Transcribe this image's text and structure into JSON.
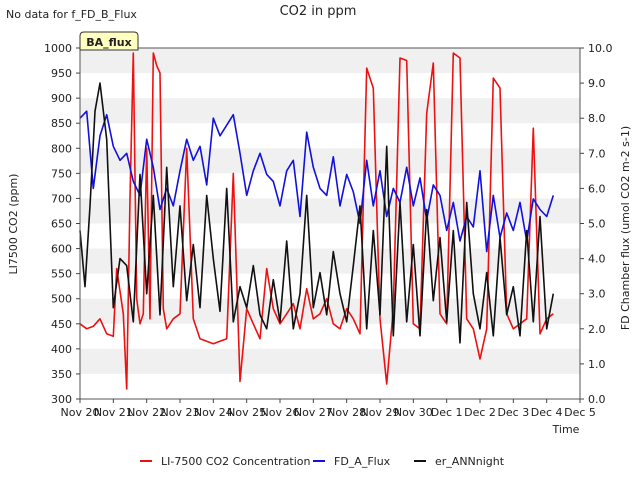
{
  "chart_data": {
    "type": "line",
    "title": "CO2 in ppm",
    "top_left_note": "No data for f_FD_B_Flux",
    "badge": "BA_flux",
    "xlabel": "Time",
    "ylabel_left": "LI7500 CO2 (ppm)",
    "ylabel_right": "FD Chamber flux (umol CO2 m-2 s-1)",
    "ylim_left": [
      300,
      1000
    ],
    "ylim_right": [
      0.0,
      10.0
    ],
    "yticks_left": [
      "300",
      "350",
      "400",
      "450",
      "500",
      "550",
      "600",
      "650",
      "700",
      "750",
      "800",
      "850",
      "900",
      "950",
      "1000"
    ],
    "yticks_right": [
      "0.0",
      "1.0",
      "2.0",
      "3.0",
      "4.0",
      "5.0",
      "6.0",
      "7.0",
      "8.0",
      "9.0",
      "10.0"
    ],
    "xticks": [
      "Nov 20",
      "Nov 21",
      "Nov 22",
      "Nov 23",
      "Nov 24",
      "Nov 25",
      "Nov 26",
      "Nov 27",
      "Nov 28",
      "Nov 29",
      "Nov 30",
      "Dec 1",
      "Dec 2",
      "Dec 3",
      "Dec 4",
      "Dec 5"
    ],
    "x_range_days": [
      0,
      15
    ],
    "grid": "horizontal bands",
    "legend_position": "bottom",
    "series": [
      {
        "name": "LI-7500 CO2 Concentration",
        "axis": "left",
        "color": "#ee1111",
        "x": [
          0.0,
          0.2,
          0.4,
          0.6,
          0.8,
          1.0,
          1.1,
          1.3,
          1.4,
          1.5,
          1.6,
          1.7,
          1.8,
          1.9,
          2.0,
          2.1,
          2.2,
          2.3,
          2.4,
          2.5,
          2.6,
          2.8,
          3.0,
          3.2,
          3.4,
          3.6,
          3.8,
          4.0,
          4.2,
          4.4,
          4.6,
          4.8,
          5.0,
          5.2,
          5.4,
          5.6,
          5.8,
          6.0,
          6.2,
          6.4,
          6.6,
          6.8,
          7.0,
          7.2,
          7.4,
          7.6,
          7.8,
          8.0,
          8.2,
          8.4,
          8.6,
          8.8,
          9.0,
          9.2,
          9.4,
          9.6,
          9.8,
          10.0,
          10.2,
          10.4,
          10.6,
          10.8,
          11.0,
          11.2,
          11.4,
          11.6,
          11.8,
          12.0,
          12.2,
          12.4,
          12.6,
          12.8,
          13.0,
          13.2,
          13.4,
          13.6,
          13.8,
          14.0,
          14.2
        ],
        "y": [
          450,
          440,
          445,
          460,
          430,
          425,
          560,
          470,
          320,
          700,
          990,
          500,
          450,
          470,
          800,
          460,
          990,
          965,
          950,
          480,
          440,
          460,
          470,
          800,
          460,
          420,
          415,
          410,
          415,
          420,
          750,
          335,
          480,
          450,
          420,
          560,
          480,
          450,
          470,
          490,
          440,
          520,
          460,
          470,
          500,
          450,
          440,
          480,
          460,
          430,
          960,
          920,
          460,
          330,
          480,
          980,
          975,
          450,
          440,
          870,
          970,
          470,
          450,
          990,
          980,
          460,
          440,
          380,
          440,
          940,
          920,
          470,
          440,
          450,
          460,
          840,
          430,
          460,
          470
        ]
      },
      {
        "name": "FD_A_Flux",
        "axis": "right",
        "color": "#1111dd",
        "x": [
          0.0,
          0.2,
          0.4,
          0.6,
          0.8,
          1.0,
          1.2,
          1.4,
          1.6,
          1.8,
          2.0,
          2.2,
          2.4,
          2.6,
          2.8,
          3.0,
          3.2,
          3.4,
          3.6,
          3.8,
          4.0,
          4.2,
          4.4,
          4.6,
          4.8,
          5.0,
          5.2,
          5.4,
          5.6,
          5.8,
          6.0,
          6.2,
          6.4,
          6.6,
          6.8,
          7.0,
          7.2,
          7.4,
          7.6,
          7.8,
          8.0,
          8.2,
          8.4,
          8.6,
          8.8,
          9.0,
          9.2,
          9.4,
          9.6,
          9.8,
          10.0,
          10.2,
          10.4,
          10.6,
          10.8,
          11.0,
          11.2,
          11.4,
          11.6,
          11.8,
          12.0,
          12.2,
          12.4,
          12.6,
          12.8,
          13.0,
          13.2,
          13.4,
          13.6,
          13.8,
          14.0,
          14.2
        ],
        "y": [
          8.0,
          8.2,
          6.0,
          7.5,
          8.1,
          7.2,
          6.8,
          7.0,
          6.2,
          5.8,
          7.4,
          6.6,
          5.4,
          6.0,
          5.5,
          6.5,
          7.4,
          6.8,
          7.2,
          6.1,
          8.0,
          7.5,
          7.8,
          8.1,
          7.0,
          5.8,
          6.5,
          7.0,
          6.4,
          6.2,
          5.5,
          6.5,
          6.8,
          5.2,
          7.6,
          6.6,
          6.0,
          5.8,
          6.9,
          5.5,
          6.4,
          5.9,
          5.0,
          6.8,
          5.5,
          6.5,
          5.2,
          6.0,
          5.6,
          6.6,
          5.5,
          6.3,
          5.1,
          6.1,
          5.8,
          4.8,
          5.6,
          4.5,
          5.2,
          4.9,
          6.5,
          4.2,
          5.8,
          4.6,
          5.3,
          4.8,
          5.6,
          4.5,
          5.7,
          5.4,
          5.2,
          5.8
        ]
      },
      {
        "name": "er_ANNnight",
        "axis": "right",
        "color": "#111111",
        "x": [
          0.0,
          0.15,
          0.3,
          0.45,
          0.6,
          0.8,
          1.0,
          1.2,
          1.4,
          1.6,
          1.8,
          2.0,
          2.2,
          2.4,
          2.6,
          2.8,
          3.0,
          3.2,
          3.4,
          3.6,
          3.8,
          4.0,
          4.2,
          4.4,
          4.6,
          4.8,
          5.0,
          5.2,
          5.4,
          5.6,
          5.8,
          6.0,
          6.2,
          6.4,
          6.6,
          6.8,
          7.0,
          7.2,
          7.4,
          7.6,
          7.8,
          8.0,
          8.2,
          8.4,
          8.6,
          8.8,
          9.0,
          9.2,
          9.4,
          9.6,
          9.8,
          10.0,
          10.2,
          10.4,
          10.6,
          10.8,
          11.0,
          11.2,
          11.4,
          11.6,
          11.8,
          12.0,
          12.2,
          12.4,
          12.6,
          12.8,
          13.0,
          13.2,
          13.4,
          13.6,
          13.8,
          14.0,
          14.2
        ],
        "y": [
          4.8,
          3.2,
          5.5,
          8.2,
          9.0,
          7.4,
          2.6,
          4.0,
          3.8,
          2.2,
          6.4,
          3.0,
          5.8,
          2.4,
          6.6,
          3.2,
          5.5,
          2.8,
          4.4,
          2.6,
          5.8,
          4.0,
          2.5,
          6.0,
          2.2,
          3.2,
          2.6,
          3.8,
          2.4,
          2.0,
          3.4,
          2.2,
          4.5,
          2.0,
          3.0,
          5.8,
          2.6,
          3.6,
          2.4,
          4.2,
          3.0,
          2.2,
          3.8,
          5.5,
          2.0,
          4.8,
          2.4,
          7.2,
          1.8,
          5.6,
          2.2,
          4.4,
          1.8,
          5.4,
          2.8,
          4.6,
          2.2,
          4.8,
          1.6,
          5.6,
          3.0,
          2.0,
          3.6,
          1.8,
          4.6,
          2.4,
          3.2,
          1.8,
          4.8,
          2.2,
          5.2,
          2.0,
          3.0
        ]
      }
    ]
  }
}
